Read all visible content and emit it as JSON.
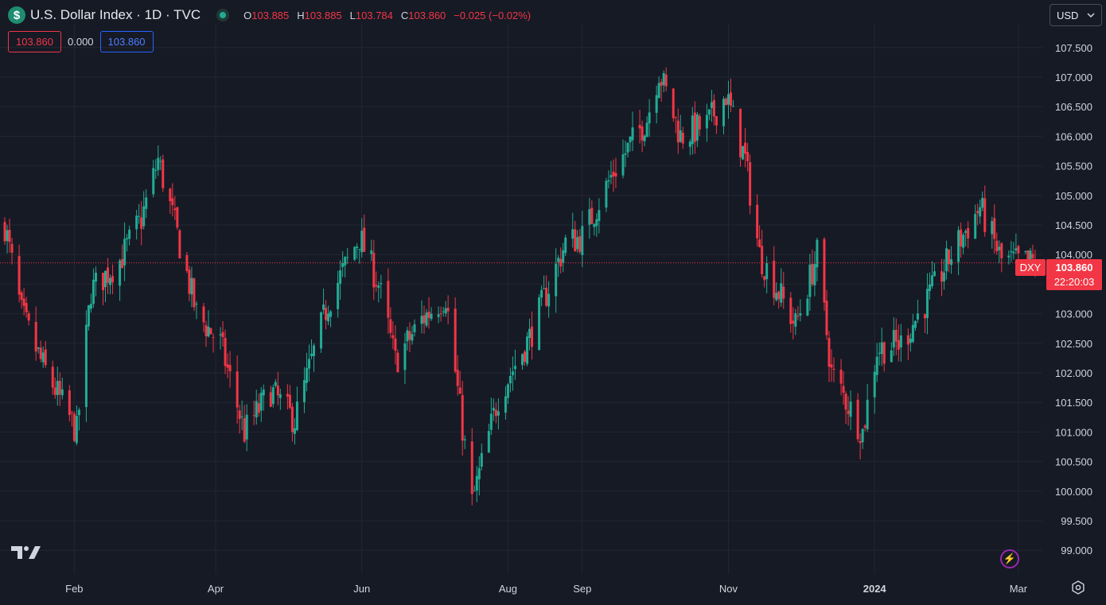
{
  "header": {
    "symbol_logo": "$",
    "title": "U.S. Dollar Index · 1D · TVC",
    "ohlc": [
      {
        "key": "O",
        "value": "103.885"
      },
      {
        "key": "H",
        "value": "103.885"
      },
      {
        "key": "L",
        "value": "103.784"
      },
      {
        "key": "C",
        "value": "103.860"
      }
    ],
    "change": "−0.025 (−0.02%)"
  },
  "values_row": {
    "value_1": "103.860",
    "value_2": "0.000",
    "value_3": "103.860"
  },
  "currency_selector": {
    "label": "USD",
    "icon": "chevron-down-icon"
  },
  "price_tag": {
    "symbol": "DXY",
    "price": "103.860",
    "countdown": "22:20:03"
  },
  "colors": {
    "background": "#161a25",
    "grid": "#232632",
    "up": "#22ab94",
    "down": "#f23645",
    "text": "#d1d4dc"
  },
  "icons": [
    "dollar-icon",
    "live-dot-icon",
    "chevron-down-icon",
    "tradingview-logo-icon",
    "lightning-icon",
    "settings-icon"
  ],
  "chart_data": {
    "type": "candlestick",
    "title": "U.S. Dollar Index · 1D · TVC",
    "y_ticks": [
      "99.000",
      "99.500",
      "100.000",
      "100.500",
      "101.000",
      "101.500",
      "102.000",
      "102.500",
      "103.000",
      "103.500",
      "104.000",
      "104.500",
      "105.000",
      "105.500",
      "106.000",
      "106.500",
      "107.000",
      "107.500"
    ],
    "ylim": [
      98.6,
      107.9
    ],
    "x_ticks": [
      "Feb",
      "Apr",
      "Jun",
      "Aug",
      "Sep",
      "Nov",
      "2024",
      "Mar"
    ],
    "x_tick_dates": [
      "2023-02-01",
      "2023-04-01",
      "2023-06-01",
      "2023-08-01",
      "2023-09-01",
      "2023-11-01",
      "2024-01-01",
      "2024-03-01"
    ],
    "xlim": [
      "2023-01-01",
      "2024-03-11"
    ],
    "current_price": 103.86,
    "grid": true,
    "anchors": [
      {
        "date": "2023-01-03",
        "price": 104.5
      },
      {
        "date": "2023-01-10",
        "price": 103.0
      },
      {
        "date": "2023-01-18",
        "price": 102.2
      },
      {
        "date": "2023-02-02",
        "price": 101.0
      },
      {
        "date": "2023-02-08",
        "price": 103.4
      },
      {
        "date": "2023-02-20",
        "price": 103.9
      },
      {
        "date": "2023-03-01",
        "price": 104.6
      },
      {
        "date": "2023-03-08",
        "price": 105.6
      },
      {
        "date": "2023-03-15",
        "price": 104.5
      },
      {
        "date": "2023-03-24",
        "price": 103.0
      },
      {
        "date": "2023-04-03",
        "price": 102.5
      },
      {
        "date": "2023-04-13",
        "price": 101.0
      },
      {
        "date": "2023-04-24",
        "price": 101.7
      },
      {
        "date": "2023-05-04",
        "price": 101.2
      },
      {
        "date": "2023-05-18",
        "price": 103.2
      },
      {
        "date": "2023-05-31",
        "price": 104.3
      },
      {
        "date": "2023-06-08",
        "price": 103.5
      },
      {
        "date": "2023-06-15",
        "price": 102.2
      },
      {
        "date": "2023-06-26",
        "price": 102.9
      },
      {
        "date": "2023-07-06",
        "price": 103.3
      },
      {
        "date": "2023-07-17",
        "price": 99.8
      },
      {
        "date": "2023-07-28",
        "price": 101.6
      },
      {
        "date": "2023-08-10",
        "price": 102.6
      },
      {
        "date": "2023-08-25",
        "price": 104.2
      },
      {
        "date": "2023-09-01",
        "price": 104.3
      },
      {
        "date": "2023-09-14",
        "price": 105.4
      },
      {
        "date": "2023-09-28",
        "price": 106.3
      },
      {
        "date": "2023-10-03",
        "price": 107.1
      },
      {
        "date": "2023-10-12",
        "price": 106.0
      },
      {
        "date": "2023-10-23",
        "price": 106.2
      },
      {
        "date": "2023-10-31",
        "price": 106.7
      },
      {
        "date": "2023-11-08",
        "price": 105.6
      },
      {
        "date": "2023-11-14",
        "price": 104.0
      },
      {
        "date": "2023-11-29",
        "price": 102.8
      },
      {
        "date": "2023-12-08",
        "price": 104.0
      },
      {
        "date": "2023-12-14",
        "price": 102.0
      },
      {
        "date": "2023-12-27",
        "price": 101.0
      },
      {
        "date": "2024-01-02",
        "price": 102.4
      },
      {
        "date": "2024-01-12",
        "price": 102.5
      },
      {
        "date": "2024-01-24",
        "price": 103.3
      },
      {
        "date": "2024-02-02",
        "price": 104.0
      },
      {
        "date": "2024-02-14",
        "price": 104.8
      },
      {
        "date": "2024-02-23",
        "price": 103.9
      },
      {
        "date": "2024-03-08",
        "price": 103.86
      }
    ]
  }
}
